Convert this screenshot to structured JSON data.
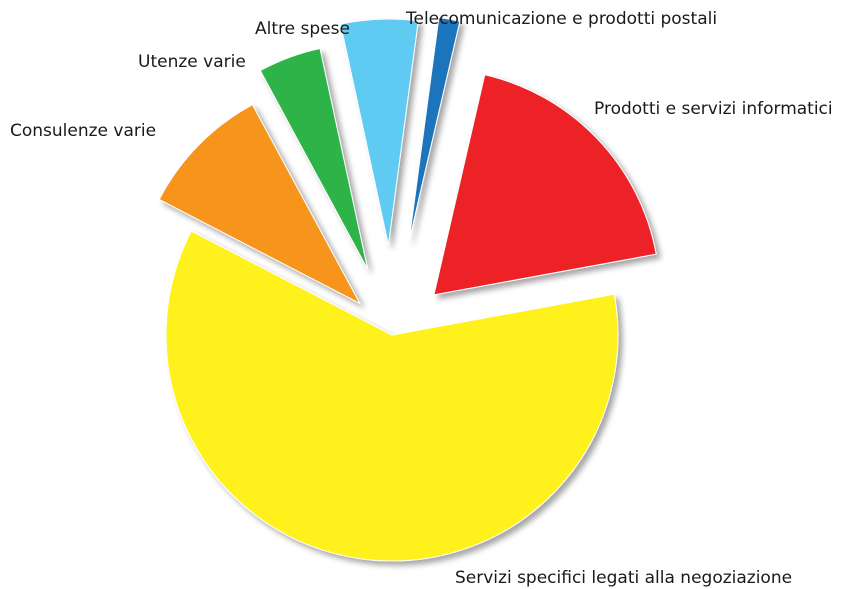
{
  "chart_data": {
    "type": "pie",
    "slices": [
      {
        "label": "Prodotti e servizi informatici",
        "value": 18.5,
        "color": "#ec2127"
      },
      {
        "label": "Servizi specifici legati alla negoziazione",
        "value": 60.5,
        "color": "#fff21c"
      },
      {
        "label": "Consulenze varie",
        "value": 9.5,
        "color": "#f7941d"
      },
      {
        "label": "Utenze varie",
        "value": 4.5,
        "color": "#2fb34a"
      },
      {
        "label": "Altre spese",
        "value": 5.5,
        "color": "#5fcbf2"
      },
      {
        "label": "Telecomunicazione e prodotti postali",
        "value": 1.5,
        "color": "#1c75bc"
      }
    ]
  }
}
